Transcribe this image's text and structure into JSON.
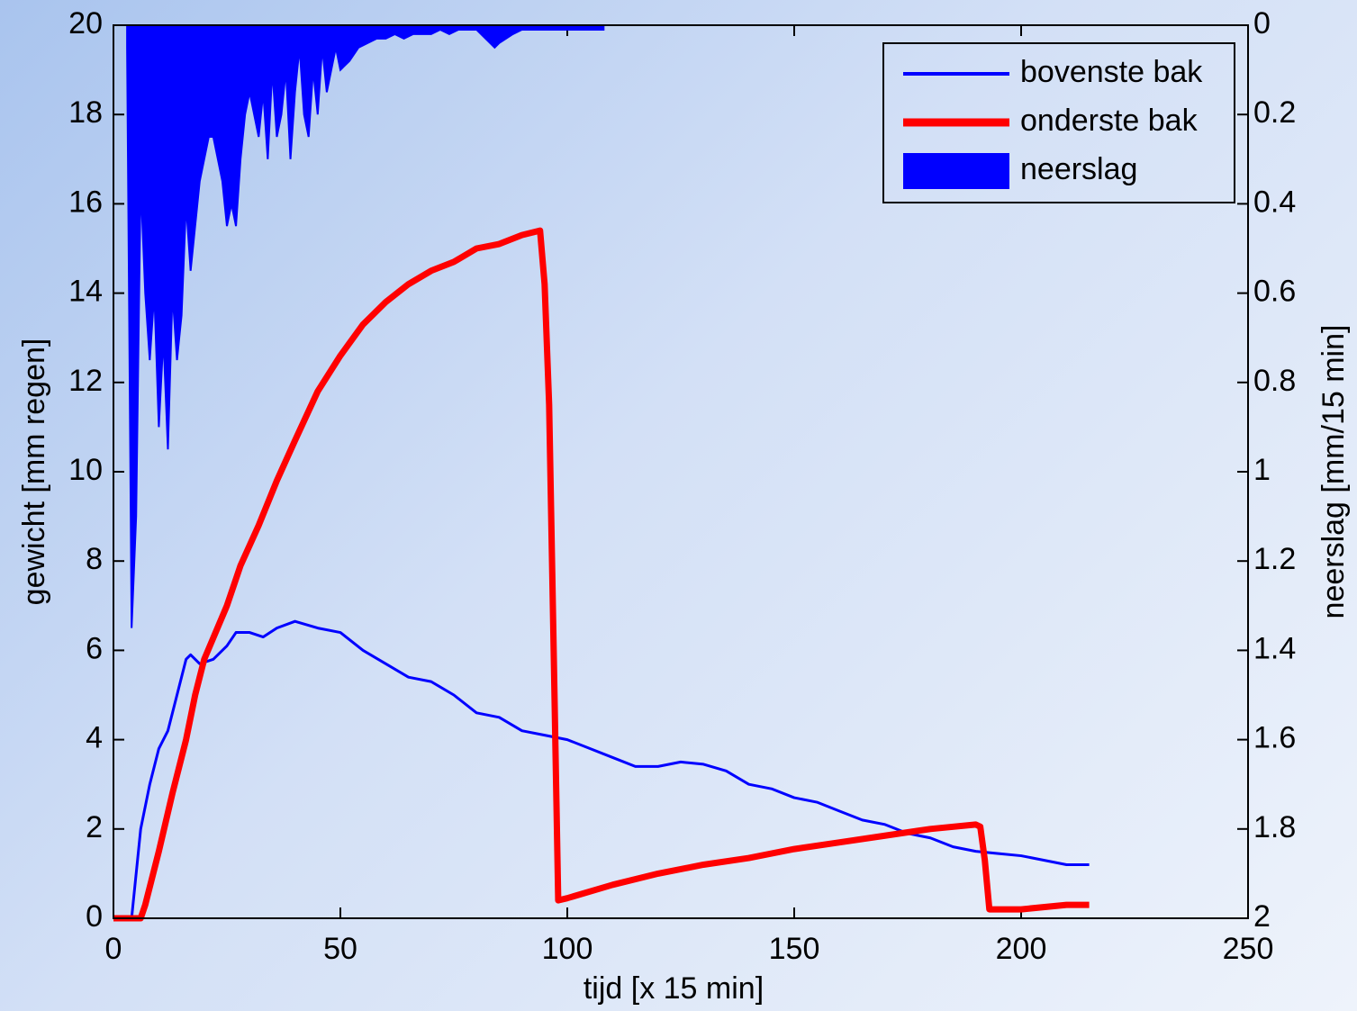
{
  "chart_data": {
    "type": "line",
    "xlabel": "tijd [x 15 min]",
    "ylabel": "gewicht [mm regen]",
    "y2label": "neerslag [mm/15 min]",
    "xlim": [
      0,
      250
    ],
    "xticks": [
      0,
      50,
      100,
      150,
      200,
      250
    ],
    "ylim": [
      0,
      20
    ],
    "yticks": [
      0,
      2,
      4,
      6,
      8,
      10,
      12,
      14,
      16,
      18,
      20
    ],
    "y2lim": [
      2,
      0
    ],
    "y2ticks": [
      0,
      0.2,
      0.4,
      0.6,
      0.8,
      1,
      1.2,
      1.4,
      1.6,
      1.8,
      2
    ],
    "legend": "upper right",
    "series": [
      {
        "name": "bovenste bak",
        "color": "#0000ff",
        "kind": "line",
        "x": [
          0,
          4,
          5,
          6,
          8,
          10,
          12,
          14,
          16,
          17,
          19,
          22,
          25,
          27,
          30,
          33,
          36,
          40,
          45,
          50,
          55,
          60,
          65,
          70,
          75,
          80,
          85,
          90,
          95,
          100,
          105,
          110,
          115,
          120,
          125,
          130,
          135,
          140,
          145,
          150,
          155,
          160,
          165,
          170,
          175,
          180,
          185,
          190,
          195,
          200,
          205,
          210,
          215
        ],
        "values": [
          0,
          0,
          1,
          2,
          3,
          3.8,
          4.2,
          5,
          5.8,
          5.9,
          5.7,
          5.8,
          6.1,
          6.4,
          6.4,
          6.3,
          6.5,
          6.65,
          6.5,
          6.4,
          6.0,
          5.7,
          5.4,
          5.3,
          5.0,
          4.6,
          4.5,
          4.2,
          4.1,
          4.0,
          3.8,
          3.6,
          3.4,
          3.4,
          3.5,
          3.45,
          3.3,
          3.0,
          2.9,
          2.7,
          2.6,
          2.4,
          2.2,
          2.1,
          1.9,
          1.8,
          1.6,
          1.5,
          1.45,
          1.4,
          1.3,
          1.2,
          1.2
        ]
      },
      {
        "name": "onderste bak",
        "color": "#ff0000",
        "kind": "line",
        "x": [
          0,
          6,
          7,
          10,
          13,
          16,
          18,
          20,
          25,
          28,
          32,
          36,
          40,
          45,
          50,
          55,
          60,
          65,
          70,
          75,
          80,
          85,
          90,
          94,
          95,
          96,
          97,
          98,
          100,
          110,
          120,
          130,
          140,
          150,
          160,
          170,
          180,
          190,
          191,
          192,
          193,
          200,
          210,
          215
        ],
        "values": [
          0,
          0,
          0.3,
          1.5,
          2.8,
          4,
          5,
          5.8,
          7,
          7.9,
          8.8,
          9.8,
          10.7,
          11.8,
          12.6,
          13.3,
          13.8,
          14.2,
          14.5,
          14.7,
          15,
          15.1,
          15.3,
          15.4,
          14.2,
          11.5,
          6,
          0.4,
          0.45,
          0.75,
          1,
          1.2,
          1.35,
          1.55,
          1.7,
          1.85,
          2.0,
          2.1,
          2.05,
          1.3,
          0.2,
          0.2,
          0.3,
          0.3
        ]
      },
      {
        "name": "neerslag",
        "color": "#0000ff",
        "kind": "area",
        "axis": "y2",
        "x": [
          3,
          4,
          5,
          6,
          7,
          8,
          9,
          10,
          11,
          12,
          13,
          14,
          15,
          16,
          17,
          18,
          19,
          20,
          21,
          22,
          23,
          24,
          25,
          26,
          27,
          28,
          29,
          30,
          31,
          32,
          33,
          34,
          35,
          36,
          37,
          38,
          39,
          40,
          41,
          42,
          43,
          44,
          45,
          46,
          47,
          48,
          49,
          50,
          52,
          54,
          56,
          58,
          60,
          62,
          64,
          66,
          68,
          70,
          72,
          74,
          76,
          78,
          80,
          84,
          85,
          88,
          90,
          95,
          100,
          105,
          108
        ],
        "values": [
          0.05,
          1.35,
          1.1,
          0.35,
          0.6,
          0.75,
          0.6,
          0.9,
          0.7,
          0.95,
          0.6,
          0.75,
          0.65,
          0.4,
          0.55,
          0.45,
          0.35,
          0.3,
          0.25,
          0.25,
          0.3,
          0.35,
          0.45,
          0.4,
          0.45,
          0.3,
          0.2,
          0.15,
          0.2,
          0.25,
          0.15,
          0.3,
          0.1,
          0.25,
          0.2,
          0.1,
          0.3,
          0.15,
          0.05,
          0.2,
          0.25,
          0.1,
          0.2,
          0.05,
          0.15,
          0.1,
          0.05,
          0.1,
          0.08,
          0.05,
          0.04,
          0.03,
          0.03,
          0.02,
          0.03,
          0.02,
          0.02,
          0.02,
          0.01,
          0.02,
          0.01,
          0.01,
          0.01,
          0.05,
          0.04,
          0.02,
          0.01,
          0.01,
          0.01,
          0.01,
          0.01
        ]
      }
    ]
  }
}
